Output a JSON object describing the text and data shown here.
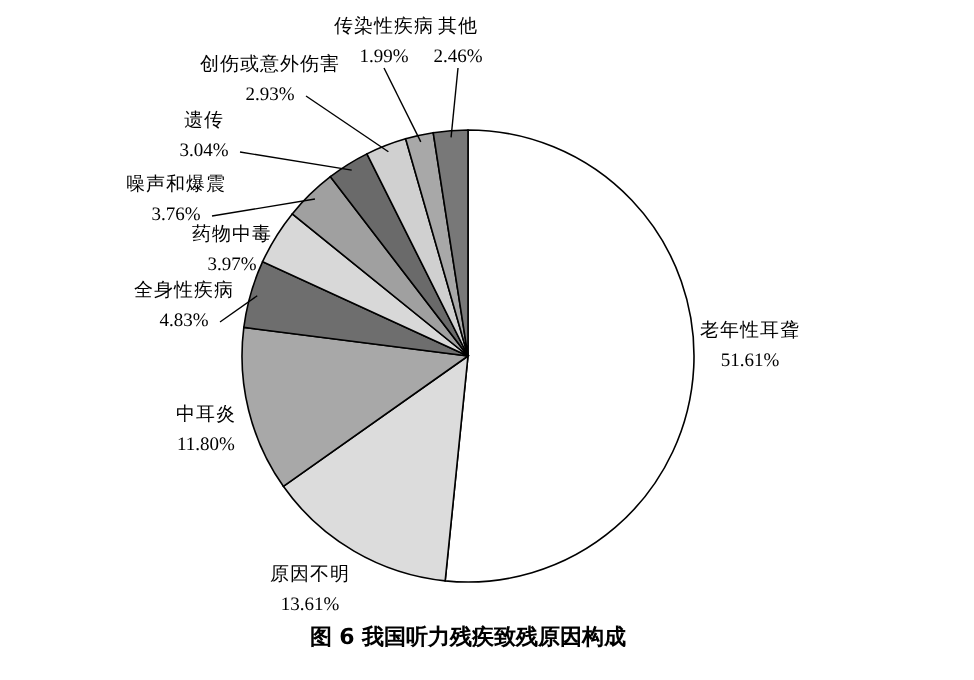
{
  "chart_data": {
    "type": "pie",
    "title": "图 6   我国听力残疾致残原因构成",
    "categories": [
      "老年性耳聋",
      "原因不明",
      "中耳炎",
      "全身性疾病",
      "药物中毒",
      "噪声和爆震",
      "遗传",
      "创伤或意外伤害",
      "传染性疾病",
      "其他"
    ],
    "values": [
      51.61,
      13.61,
      11.8,
      4.83,
      3.97,
      3.76,
      3.04,
      2.93,
      1.99,
      2.46
    ],
    "value_labels": [
      "51.61%",
      "13.61%",
      "11.80%",
      "4.83%",
      "3.97%",
      "3.76%",
      "3.04%",
      "2.93%",
      "1.99%",
      "2.46%"
    ],
    "colors": [
      "#ffffff",
      "#dcdcdc",
      "#a8a8a8",
      "#6e6e6e",
      "#d8d8d8",
      "#a0a0a0",
      "#6a6a6a",
      "#d0d0d0",
      "#a8a8a8",
      "#787878"
    ]
  }
}
